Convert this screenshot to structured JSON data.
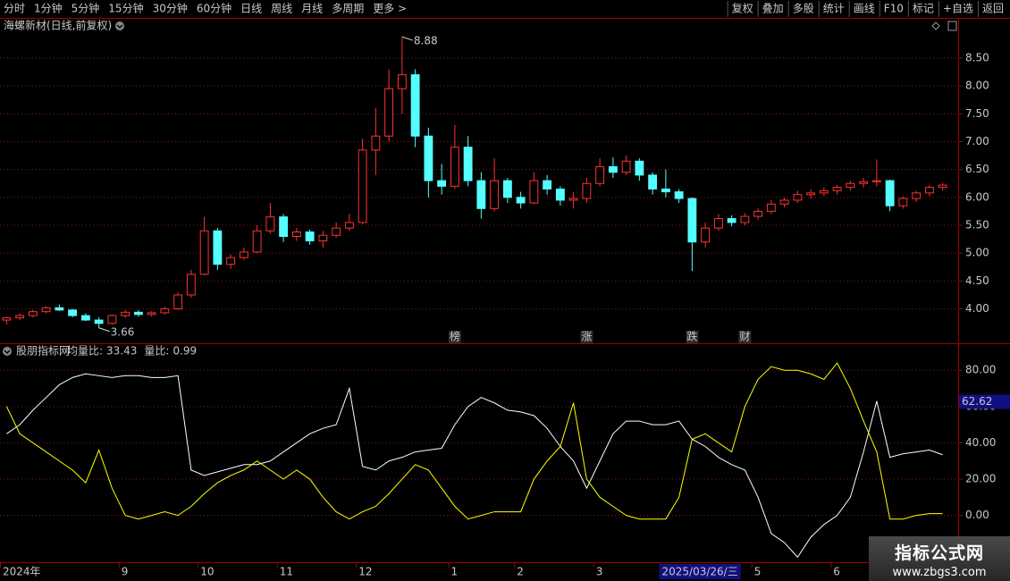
{
  "toolbar": {
    "left": [
      "分时",
      "1分钟",
      "5分钟",
      "15分钟",
      "30分钟",
      "60分钟",
      "日线",
      "周线",
      "月线",
      "多周期",
      "更多 >"
    ],
    "active_index": 6,
    "right": [
      "复权",
      "叠加",
      "多股",
      "统计",
      "画线",
      "F10",
      "标记",
      "+自选",
      "返回"
    ]
  },
  "chart_data": [
    {
      "type": "candlestick",
      "title": "海螺新材(日线,前复权)",
      "open": [
        3.8,
        3.84,
        3.88,
        3.95,
        4.02,
        3.98,
        3.88,
        3.8,
        3.74,
        3.88,
        3.94,
        3.9,
        3.93,
        4.0,
        4.25,
        4.62,
        5.4,
        4.8,
        4.92,
        5.02,
        5.4,
        5.65,
        5.3,
        5.38,
        5.22,
        5.32,
        5.45,
        5.55,
        6.85,
        7.1,
        7.95,
        8.2,
        7.1,
        6.3,
        6.2,
        6.9,
        6.3,
        5.8,
        6.3,
        6.0,
        5.9,
        6.3,
        6.15,
        5.95,
        5.98,
        6.25,
        6.55,
        6.45,
        6.65,
        6.4,
        6.15,
        6.1,
        5.98,
        5.2,
        5.45,
        5.62,
        5.55,
        5.66,
        5.75,
        5.88,
        5.95,
        6.05,
        6.08,
        6.12,
        6.18,
        6.25,
        6.28,
        6.3,
        5.85,
        5.98,
        6.08,
        6.18
      ],
      "high": [
        3.86,
        3.92,
        3.98,
        4.05,
        4.08,
        4.0,
        3.92,
        3.85,
        3.9,
        3.98,
        3.98,
        3.96,
        4.04,
        4.3,
        4.7,
        5.65,
        5.45,
        4.98,
        5.1,
        5.5,
        5.9,
        5.7,
        5.45,
        5.42,
        5.4,
        5.55,
        5.7,
        7.05,
        7.6,
        8.3,
        8.88,
        8.3,
        7.25,
        6.6,
        7.3,
        7.1,
        6.45,
        6.7,
        6.35,
        6.1,
        6.45,
        6.4,
        6.2,
        6.1,
        6.35,
        6.7,
        6.72,
        6.75,
        6.7,
        6.45,
        6.5,
        6.15,
        6.0,
        5.55,
        5.7,
        5.68,
        5.72,
        5.8,
        5.95,
        6.0,
        6.12,
        6.15,
        6.18,
        6.22,
        6.3,
        6.35,
        6.68,
        6.32,
        6.02,
        6.12,
        6.22,
        6.26
      ],
      "low": [
        3.72,
        3.8,
        3.85,
        3.92,
        3.96,
        3.85,
        3.78,
        3.66,
        3.72,
        3.84,
        3.86,
        3.86,
        3.9,
        3.98,
        4.2,
        4.6,
        4.7,
        4.72,
        4.88,
        5.0,
        5.35,
        5.2,
        5.22,
        5.15,
        5.1,
        5.28,
        5.4,
        5.52,
        6.4,
        7.0,
        7.5,
        6.9,
        6.0,
        6.05,
        6.15,
        6.2,
        5.62,
        5.75,
        5.9,
        5.8,
        5.88,
        6.05,
        5.85,
        5.8,
        5.9,
        6.2,
        6.35,
        6.4,
        6.3,
        6.05,
        6.0,
        5.9,
        4.68,
        5.1,
        5.4,
        5.48,
        5.5,
        5.6,
        5.7,
        5.82,
        5.9,
        5.98,
        6.02,
        6.05,
        6.12,
        6.18,
        6.2,
        5.75,
        5.8,
        5.92,
        6.02,
        6.12
      ],
      "close": [
        3.84,
        3.88,
        3.95,
        4.02,
        3.98,
        3.88,
        3.8,
        3.74,
        3.88,
        3.94,
        3.9,
        3.93,
        4.0,
        4.25,
        4.62,
        5.4,
        4.8,
        4.92,
        5.02,
        5.4,
        5.65,
        5.3,
        5.38,
        5.22,
        5.32,
        5.45,
        5.55,
        6.85,
        7.1,
        7.95,
        8.2,
        7.1,
        6.3,
        6.2,
        6.9,
        6.3,
        5.8,
        6.3,
        6.0,
        5.9,
        6.3,
        6.15,
        5.95,
        5.98,
        6.25,
        6.55,
        6.45,
        6.65,
        6.4,
        6.15,
        6.1,
        5.98,
        5.2,
        5.45,
        5.62,
        5.55,
        5.66,
        5.75,
        5.88,
        5.95,
        6.05,
        6.08,
        6.12,
        6.18,
        6.25,
        6.28,
        6.3,
        5.85,
        5.98,
        6.08,
        6.18,
        6.22
      ],
      "up_color": "#ff3232",
      "down_color": "#54ffff",
      "grid": true,
      "ylim": [
        3.4,
        9.22
      ],
      "yticks": [
        {
          "value": 4,
          "label": "4.00"
        },
        {
          "value": 4.5,
          "label": "4.50"
        },
        {
          "value": 5,
          "label": "5.00"
        },
        {
          "value": 5.5,
          "label": "5.50"
        },
        {
          "value": 6,
          "label": "6.00"
        },
        {
          "value": 6.5,
          "label": "6.50"
        },
        {
          "value": 7,
          "label": "7.00"
        },
        {
          "value": 7.5,
          "label": "7.50"
        },
        {
          "value": 8,
          "label": "8.00"
        },
        {
          "value": 8.5,
          "label": "8.50"
        }
      ],
      "markers": [
        {
          "text": "榜",
          "index": 34,
          "color": "#ff9a2e"
        },
        {
          "text": "涨",
          "index": 44,
          "color": "#ff4040"
        },
        {
          "text": "跌",
          "index": 52,
          "color": "#40e040"
        },
        {
          "text": "财",
          "index": 56,
          "color": "#60b0ff"
        }
      ]
    },
    {
      "type": "line",
      "title": "股朋指标网",
      "categories": [
        "2024年",
        null,
        null,
        null,
        null,
        null,
        null,
        null,
        null,
        "9",
        null,
        null,
        null,
        null,
        null,
        "10",
        null,
        null,
        null,
        null,
        null,
        "11",
        null,
        null,
        null,
        null,
        null,
        "12",
        null,
        null,
        null,
        null,
        null,
        null,
        "1",
        null,
        null,
        null,
        null,
        "2",
        null,
        null,
        null,
        null,
        null,
        "3",
        null,
        null,
        null,
        null,
        "2025/03/26/三",
        null,
        null,
        null,
        null,
        null,
        null,
        "5",
        null,
        null,
        null,
        null,
        null,
        "6",
        null,
        null,
        null,
        null,
        null,
        null,
        null,
        null
      ],
      "cursor_index": 50,
      "series": [
        {
          "name": "均量比:",
          "color": "#ffffff",
          "values": [
            45,
            50,
            58,
            65,
            72,
            76,
            78,
            77,
            76,
            77,
            77,
            76,
            76,
            77,
            25,
            22,
            24,
            26,
            28,
            28,
            30,
            35,
            40,
            45,
            48,
            50,
            70,
            27,
            25,
            30,
            32,
            35,
            36,
            37,
            50,
            60,
            65,
            62,
            58,
            57,
            55,
            48,
            38,
            30,
            15,
            30,
            45,
            52,
            52,
            50,
            50,
            52,
            42,
            38,
            32,
            28,
            25,
            10,
            -10,
            -15,
            -23,
            -12,
            -5,
            0,
            10,
            35,
            63,
            32,
            34,
            35,
            36,
            33.43
          ]
        },
        {
          "name": "量比:",
          "color": "#ffff00",
          "values": [
            60,
            45,
            40,
            35,
            30,
            25,
            18,
            36,
            15,
            0,
            -2,
            0,
            2,
            0,
            5,
            12,
            18,
            22,
            25,
            30,
            25,
            20,
            25,
            20,
            10,
            2,
            -2,
            2,
            5,
            12,
            20,
            28,
            25,
            15,
            5,
            -2,
            0,
            2,
            2,
            2,
            20,
            30,
            38,
            62,
            20,
            10,
            5,
            0,
            -2,
            -2,
            -2,
            10,
            42,
            45,
            40,
            35,
            60,
            75,
            82,
            80,
            80,
            78,
            75,
            84,
            70,
            52,
            35,
            -2,
            -2,
            0,
            1,
            0.99
          ]
        }
      ],
      "grid": true,
      "ylim": [
        -25.3,
        93.9
      ],
      "yticks": [
        {
          "value": 0,
          "label": "0.00"
        },
        {
          "value": 20,
          "label": "20.00"
        },
        {
          "value": 40,
          "label": "40.00"
        },
        {
          "value": 60,
          "label": "60.00"
        },
        {
          "value": 80,
          "label": "80.00"
        }
      ],
      "cursor_value": 62.62
    }
  ],
  "watermark": {
    "title": "指标公式网",
    "url": "www.zbgs3.com"
  }
}
